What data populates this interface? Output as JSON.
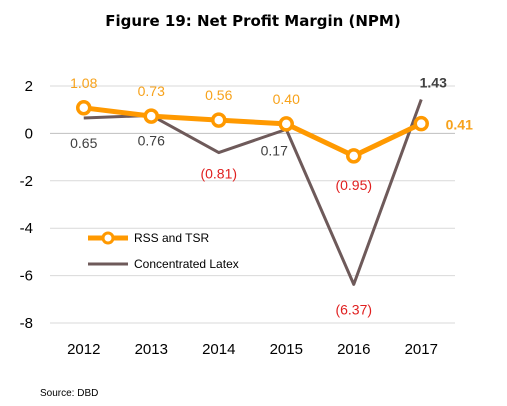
{
  "chart_data": {
    "type": "line",
    "title": "Figure 19: Net Profit Margin (NPM)",
    "categories": [
      "2012",
      "2013",
      "2014",
      "2015",
      "2016",
      "2017"
    ],
    "yticks": [
      2,
      0,
      -2,
      -4,
      -6,
      -8
    ],
    "ylim": [
      -8,
      2
    ],
    "grid": true,
    "legend_position": "lower-left",
    "series": [
      {
        "name": "RSS and TSR",
        "color": "#FF9900",
        "marker": "circle",
        "values": [
          1.08,
          0.73,
          0.56,
          0.4,
          -0.95,
          0.41
        ],
        "labels": [
          "1.08",
          "0.73",
          "0.56",
          "0.40",
          "(0.95)",
          "0.41"
        ]
      },
      {
        "name": "Concentrated Latex",
        "color": "#6E5A5A",
        "marker": "none",
        "values": [
          0.65,
          0.76,
          -0.81,
          0.17,
          -6.37,
          1.43
        ],
        "labels": [
          "0.65",
          "0.76",
          "(0.81)",
          "0.17",
          "(6.37)",
          "1.43"
        ]
      }
    ],
    "label_colors": {
      "rss_positive": "#F7A21B",
      "negative": "#E02020",
      "latex_positive": "#404040"
    }
  },
  "source": "Source:  DBD"
}
